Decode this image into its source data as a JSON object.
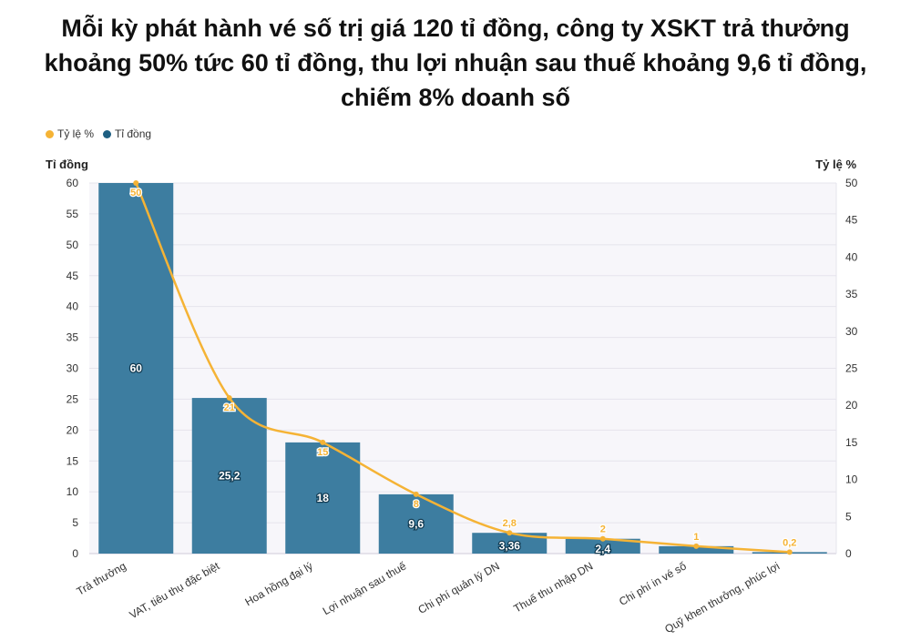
{
  "title": "Mỗi kỳ phát hành vé số trị giá 120 tỉ đồng, công ty XSKT trả thưởng khoảng 50% tức 60 tỉ đồng, thu lợi nhuận sau thuế khoảng 9,6 tỉ đồng, chiếm 8% doanh số",
  "legend": {
    "items": [
      {
        "label": "Tỷ lệ %",
        "color": "#f5b335"
      },
      {
        "label": "Tỉ đồng",
        "color": "#1e5f82"
      }
    ]
  },
  "chart_data": {
    "type": "bar",
    "categories": [
      "Trả thưởng",
      "VAT, tiêu thụ đặc biệt",
      "Hoa hồng đại lý",
      "Lợi nhuận sau thuế",
      "Chi phí quản lý DN",
      "Thuế thu nhập DN",
      "Chi phí in vé số",
      "Quỹ khen thưởng, phúc lợi"
    ],
    "series": [
      {
        "name": "Tỉ đồng",
        "type": "bar",
        "axis": "left",
        "color": "#3d7da0",
        "values": [
          60,
          25.2,
          18,
          9.6,
          3.36,
          2.4,
          1.2,
          0.24
        ],
        "labels": [
          "60",
          "25,2",
          "18",
          "9,6",
          "3,36",
          "2,4",
          "",
          ""
        ]
      },
      {
        "name": "Tỷ lệ %",
        "type": "line",
        "axis": "right",
        "color": "#f5b335",
        "values": [
          50,
          21,
          15,
          8,
          2.8,
          2,
          1,
          0.2
        ],
        "labels": [
          "50",
          "21",
          "15",
          "8",
          "2,8",
          "2",
          "1",
          "0,2"
        ]
      }
    ],
    "ylabel": "Tỉ đồng",
    "y2label": "Tỷ lệ %",
    "ylim": [
      0,
      60
    ],
    "y2lim": [
      0,
      50
    ],
    "yticks": [
      0,
      5,
      10,
      15,
      20,
      25,
      30,
      35,
      40,
      45,
      50,
      55,
      60
    ],
    "y2ticks": [
      0,
      5,
      10,
      15,
      20,
      25,
      30,
      35,
      40,
      45,
      50
    ],
    "grid": true
  }
}
